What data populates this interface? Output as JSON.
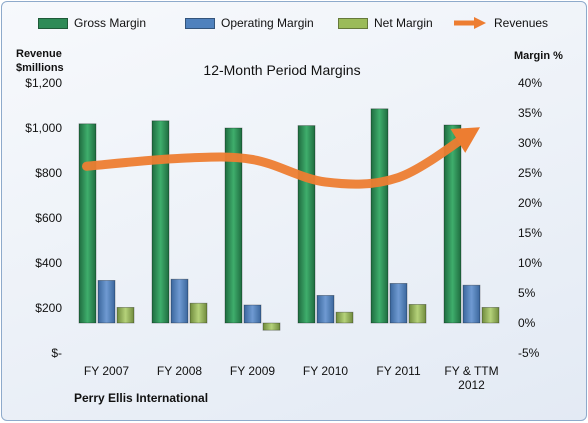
{
  "chart_data": {
    "type": "bar",
    "title": "12-Month Period Margins",
    "categories": [
      "FY 2007",
      "FY 2008",
      "FY 2009",
      "FY 2010",
      "FY 2011",
      "FY & TTM 2012"
    ],
    "series": [
      {
        "name": "Gross Margin",
        "axis": "right",
        "values": [
          33.2,
          33.7,
          32.5,
          32.9,
          35.7,
          33.0
        ],
        "color": "#2e8b57"
      },
      {
        "name": "Operating Margin",
        "axis": "right",
        "values": [
          7.1,
          7.3,
          3.0,
          4.6,
          6.6,
          6.3
        ],
        "color": "#4f81bd"
      },
      {
        "name": "Net Margin",
        "axis": "right",
        "values": [
          2.6,
          3.3,
          -1.2,
          1.8,
          3.1,
          2.6
        ],
        "color": "#9bbb59"
      },
      {
        "name": "Revenues",
        "axis": "left",
        "type": "line",
        "values": [
          830,
          865,
          860,
          760,
          780,
          980
        ],
        "color": "#ed7d31"
      }
    ],
    "yleft": {
      "label_line1": "Revenue",
      "label_line2": "$millions",
      "range": [
        0,
        1200
      ],
      "ticks": [
        "$-",
        "$200",
        "$400",
        "$600",
        "$800",
        "$1,000",
        "$1,200"
      ]
    },
    "yright": {
      "label": "Margin %",
      "range": [
        -5,
        40
      ],
      "ticks": [
        "-5%",
        "0%",
        "5%",
        "10%",
        "15%",
        "20%",
        "25%",
        "30%",
        "35%",
        "40%"
      ]
    },
    "xtick_lines": [
      [
        "FY 2007"
      ],
      [
        "FY 2008"
      ],
      [
        "FY 2009"
      ],
      [
        "FY 2010"
      ],
      [
        "FY 2011"
      ],
      [
        "FY & TTM",
        "2012"
      ]
    ],
    "grid": false,
    "legend_position": "top"
  },
  "company": "Perry Ellis International"
}
